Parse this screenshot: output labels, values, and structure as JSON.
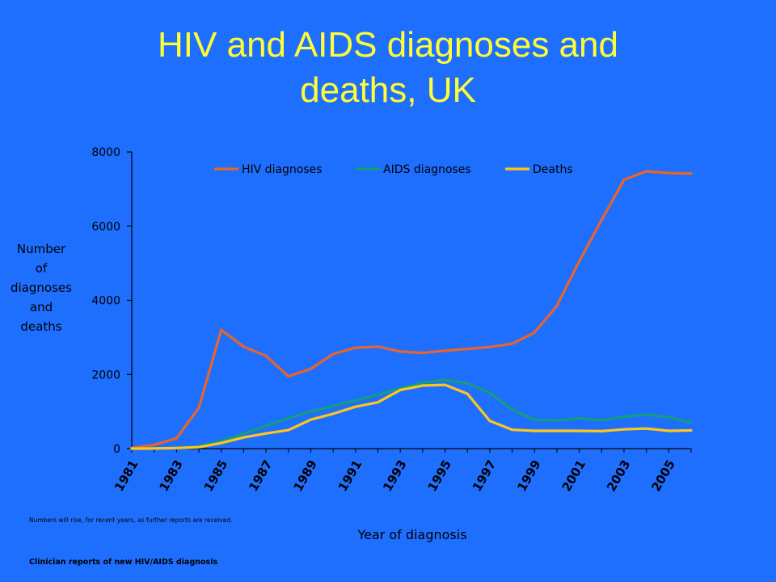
{
  "title_lines": [
    "HIV and AIDS diagnoses and",
    "deaths, UK"
  ],
  "ylabel_lines": [
    "Number",
    "of",
    "diagnoses",
    "and",
    "deaths"
  ],
  "xlabel": "Year of diagnosis",
  "footnote": "Numbers will rise, for recent years, as further reports are received.",
  "source": "Clinician reports of new HIV/AIDS diagnosis",
  "chart_data": {
    "type": "line",
    "title": "HIV and AIDS diagnoses and deaths, UK",
    "xlabel": "Year of diagnosis",
    "ylabel": "Number of diagnoses and deaths",
    "x": [
      1981,
      1982,
      1983,
      1984,
      1985,
      1986,
      1987,
      1988,
      1989,
      1990,
      1991,
      1992,
      1993,
      1994,
      1995,
      1996,
      1997,
      1998,
      1999,
      2000,
      2001,
      2002,
      2003,
      2004,
      2005,
      2006
    ],
    "x_tick_labels": [
      "1981",
      "1983",
      "1985",
      "1987",
      "1989",
      "1991",
      "1993",
      "1995",
      "1997",
      "1999",
      "2001",
      "2003",
      "2005"
    ],
    "y_ticks": [
      "0",
      "2000",
      "4000",
      "6000",
      "8000"
    ],
    "ylim": [
      0,
      8000
    ],
    "grid": false,
    "legend_position": "top",
    "series": [
      {
        "name": "HIV diagnoses",
        "color": "#e8642a",
        "values": [
          20,
          100,
          280,
          1100,
          3200,
          2750,
          2500,
          1950,
          2150,
          2550,
          2720,
          2750,
          2620,
          2580,
          2640,
          2690,
          2740,
          2830,
          3130,
          3850,
          5050,
          6170,
          7250,
          7480,
          7430,
          7420
        ]
      },
      {
        "name": "AIDS diagnoses",
        "color": "#139e7c",
        "values": [
          0,
          5,
          20,
          60,
          200,
          400,
          620,
          820,
          1000,
          1150,
          1300,
          1450,
          1620,
          1780,
          1850,
          1760,
          1500,
          1050,
          780,
          760,
          820,
          760,
          860,
          920,
          850,
          700
        ]
      },
      {
        "name": "Deaths",
        "color": "#ffc61a",
        "values": [
          0,
          5,
          15,
          40,
          150,
          300,
          410,
          500,
          780,
          940,
          1130,
          1250,
          1580,
          1700,
          1720,
          1480,
          750,
          510,
          480,
          480,
          480,
          470,
          520,
          540,
          480,
          490
        ]
      }
    ]
  }
}
